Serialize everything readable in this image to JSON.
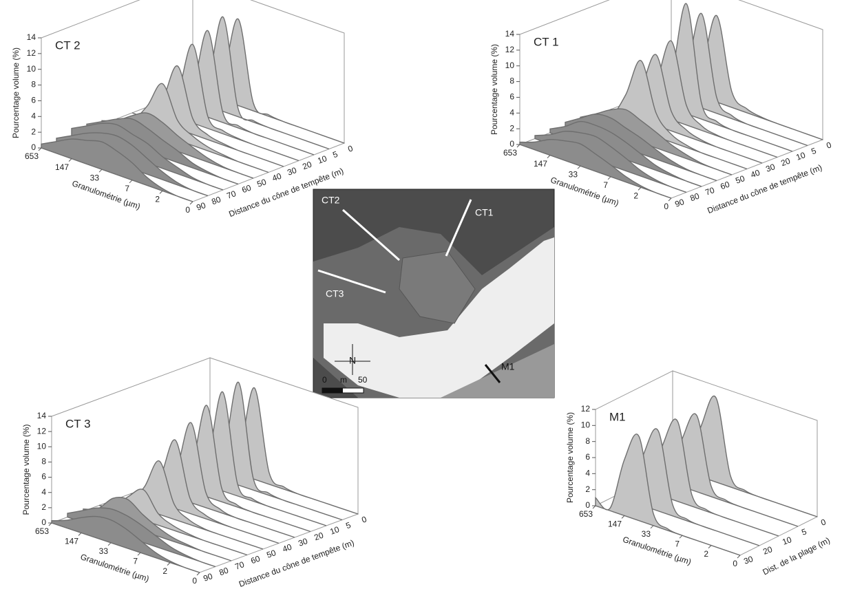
{
  "chart_data": [
    {
      "type": "waterfall",
      "title": "CT 2",
      "ylabel": "Pourcentage volume (%)",
      "xlabel": "Granulométrie (µm)",
      "zlabel": "Distance du cône de tempête (m)",
      "categories": [
        "653",
        null,
        "147",
        null,
        "33",
        null,
        "7",
        null,
        "2",
        null,
        "0"
      ],
      "zcategories": [
        90,
        80,
        70,
        60,
        50,
        40,
        30,
        20,
        10,
        5,
        0
      ],
      "ylim": [
        0,
        14
      ],
      "yticks": [
        0,
        2,
        4,
        6,
        8,
        10,
        12,
        14
      ],
      "series": [
        {
          "color": "#8c8c8c",
          "values": [
            0.5,
            1.5,
            2.5,
            3,
            3.5,
            3,
            2.2,
            1,
            0.3,
            0,
            0
          ]
        },
        {
          "color": "#8c8c8c",
          "values": [
            0.5,
            1.5,
            2.5,
            3.2,
            3.5,
            3,
            2,
            1,
            0.3,
            0,
            0
          ]
        },
        {
          "color": "#8c8c8c",
          "values": [
            1,
            2,
            3,
            3.5,
            3,
            2.5,
            1.5,
            0.8,
            0.2,
            0,
            0
          ]
        },
        {
          "color": "#8c8c8c",
          "values": [
            0.8,
            1.8,
            2.8,
            3.5,
            3,
            2.2,
            1.5,
            0.6,
            0.2,
            0,
            0
          ]
        },
        {
          "color": "#9a9a9a",
          "values": [
            0.5,
            1.2,
            2.5,
            3.5,
            3,
            2,
            1.2,
            0.5,
            0.1,
            0,
            0
          ]
        },
        {
          "color": "#c4c4c4",
          "values": [
            0,
            0.5,
            3,
            6.5,
            2.5,
            1.2,
            0.5,
            0.2,
            0,
            0,
            0
          ]
        },
        {
          "color": "#c4c4c4",
          "values": [
            0,
            0.3,
            3,
            8,
            2,
            0.6,
            0.2,
            0,
            0,
            0,
            0
          ]
        },
        {
          "color": "#c4c4c4",
          "values": [
            0,
            0.2,
            3,
            10,
            1.5,
            0.4,
            0.1,
            0,
            0,
            0,
            0
          ]
        },
        {
          "color": "#c4c4c4",
          "values": [
            0,
            0.2,
            3,
            11,
            1.2,
            0.3,
            0,
            0,
            0,
            0,
            0
          ]
        },
        {
          "color": "#c4c4c4",
          "values": [
            0,
            0.2,
            3,
            12,
            1,
            0.2,
            0,
            0,
            0,
            0,
            0
          ]
        },
        {
          "color": "#c4c4c4",
          "values": [
            0,
            0.2,
            3,
            11,
            1,
            0.2,
            0,
            0,
            0,
            0,
            0
          ]
        }
      ]
    },
    {
      "type": "waterfall",
      "title": "CT 1",
      "ylabel": "Pourcentage volume (%)",
      "xlabel": "Granulométrie (µm)",
      "zlabel": "Distance du cône de tempête (m)",
      "categories": [
        "653",
        null,
        "147",
        null,
        "33",
        null,
        "7",
        null,
        "2",
        null,
        "0"
      ],
      "zcategories": [
        90,
        80,
        70,
        60,
        50,
        40,
        30,
        20,
        10,
        5,
        0
      ],
      "ylim": [
        0,
        14
      ],
      "yticks": [
        0,
        2,
        4,
        6,
        8,
        10,
        12,
        14
      ],
      "series": [
        {
          "color": "#8c8c8c",
          "values": [
            0.3,
            1,
            2,
            2.5,
            2.8,
            2.2,
            1.5,
            0.7,
            0.2,
            0,
            0
          ]
        },
        {
          "color": "#8c8c8c",
          "values": [
            0.4,
            1.2,
            2.3,
            2.8,
            3,
            2.4,
            1.6,
            0.7,
            0.2,
            0,
            0
          ]
        },
        {
          "color": "#8c8c8c",
          "values": [
            0.5,
            1.5,
            2.8,
            3,
            2.8,
            2.2,
            1.4,
            0.6,
            0.2,
            0,
            0
          ]
        },
        {
          "color": "#8c8c8c",
          "values": [
            0.6,
            1.8,
            3,
            3.2,
            2.6,
            2,
            1.2,
            0.5,
            0.1,
            0,
            0
          ]
        },
        {
          "color": "#9a9a9a",
          "values": [
            0.5,
            1.6,
            2.8,
            3.5,
            2.8,
            2,
            1.1,
            0.5,
            0.1,
            0,
            0
          ]
        },
        {
          "color": "#c4c4c4",
          "values": [
            0,
            0.5,
            4,
            9,
            3,
            1,
            0.3,
            0,
            0,
            0,
            0
          ]
        },
        {
          "color": "#c4c4c4",
          "values": [
            0,
            0.4,
            4,
            9,
            2.5,
            0.8,
            0.2,
            0,
            0,
            0,
            0
          ]
        },
        {
          "color": "#c4c4c4",
          "values": [
            0,
            0.3,
            4,
            10,
            2.5,
            0.6,
            0.1,
            0,
            0,
            0,
            0
          ]
        },
        {
          "color": "#c4c4c4",
          "values": [
            0,
            0.2,
            4,
            14,
            2,
            0.4,
            0,
            0,
            0,
            0,
            0
          ]
        },
        {
          "color": "#c4c4c4",
          "values": [
            0,
            0.2,
            4,
            12,
            2,
            0.4,
            0,
            0,
            0,
            0,
            0
          ]
        },
        {
          "color": "#c4c4c4",
          "values": [
            0,
            0.2,
            3.5,
            11,
            2,
            0.5,
            0.1,
            0,
            0,
            0,
            0
          ]
        }
      ]
    },
    {
      "type": "waterfall",
      "title": "CT 3",
      "ylabel": "Pourcentage volume (%)",
      "xlabel": "Granulométrie (µm)",
      "zlabel": "Distance du cône de tempête (m)",
      "categories": [
        "653",
        null,
        "147",
        null,
        "33",
        null,
        "7",
        null,
        "2",
        null,
        "0"
      ],
      "zcategories": [
        90,
        80,
        70,
        60,
        50,
        40,
        30,
        20,
        10,
        5,
        0
      ],
      "ylim": [
        0,
        14
      ],
      "yticks": [
        0,
        2,
        4,
        6,
        8,
        10,
        12,
        14
      ],
      "series": [
        {
          "color": "#8c8c8c",
          "values": [
            0.3,
            1,
            2,
            2.8,
            3,
            2.5,
            1.6,
            0.7,
            0.2,
            0,
            0
          ]
        },
        {
          "color": "#8c8c8c",
          "values": [
            0.5,
            1.5,
            2.5,
            3,
            2.8,
            2.2,
            1.4,
            0.6,
            0.2,
            0,
            0
          ]
        },
        {
          "color": "#9a9a9a",
          "values": [
            0.3,
            1,
            3,
            3.5,
            2.2,
            1.2,
            0.5,
            0.2,
            0,
            0,
            0
          ]
        },
        {
          "color": "#c4c4c4",
          "values": [
            0,
            0.5,
            2.5,
            4,
            1.5,
            0.6,
            0.2,
            0,
            0,
            0,
            0
          ]
        },
        {
          "color": "#c4c4c4",
          "values": [
            0,
            0.3,
            3,
            7,
            2,
            0.6,
            0.1,
            0,
            0,
            0,
            0
          ]
        },
        {
          "color": "#c4c4c4",
          "values": [
            0,
            0.3,
            3.5,
            9,
            2,
            0.5,
            0.1,
            0,
            0,
            0,
            0
          ]
        },
        {
          "color": "#c4c4c4",
          "values": [
            0,
            0.2,
            3.5,
            10.5,
            2,
            0.4,
            0,
            0,
            0,
            0,
            0
          ]
        },
        {
          "color": "#c4c4c4",
          "values": [
            0,
            0.2,
            3.5,
            12,
            1.8,
            0.3,
            0,
            0,
            0,
            0,
            0
          ]
        },
        {
          "color": "#c4c4c4",
          "values": [
            0,
            0.2,
            3.5,
            13,
            1.6,
            0.3,
            0,
            0,
            0,
            0,
            0
          ]
        },
        {
          "color": "#c4c4c4",
          "values": [
            0,
            0.2,
            3.5,
            13.5,
            1.5,
            0.3,
            0,
            0,
            0,
            0,
            0
          ]
        },
        {
          "color": "#c4c4c4",
          "values": [
            0,
            0.2,
            3,
            12,
            1.5,
            0.3,
            0,
            0,
            0,
            0,
            0
          ]
        }
      ]
    },
    {
      "type": "waterfall",
      "title": "M1",
      "ylabel": "Pourcentage volume (%)",
      "xlabel": "Granulométrie (µm)",
      "zlabel": "Dist. de la plage (m)",
      "categories": [
        "653",
        null,
        "147",
        null,
        "33",
        null,
        "7",
        null,
        "2",
        null,
        "0"
      ],
      "zcategories": [
        30,
        20,
        10,
        5,
        0
      ],
      "ylim": [
        0,
        12
      ],
      "yticks": [
        0,
        2,
        4,
        6,
        8,
        10,
        12
      ],
      "series": [
        {
          "color": "#c4c4c4",
          "values": [
            1,
            0.3,
            7,
            10.5,
            1.5,
            0.2,
            0,
            0,
            0,
            0,
            0
          ]
        },
        {
          "color": "#c4c4c4",
          "values": [
            0,
            0.2,
            6.5,
            10,
            1.4,
            0.2,
            0,
            0,
            0,
            0,
            0
          ]
        },
        {
          "color": "#c4c4c4",
          "values": [
            0,
            0.2,
            6.5,
            10,
            1.4,
            0.2,
            0,
            0,
            0,
            0,
            0
          ]
        },
        {
          "color": "#c4c4c4",
          "values": [
            0,
            0.2,
            6,
            9.5,
            1.3,
            0.2,
            0,
            0,
            0,
            0,
            0
          ]
        },
        {
          "color": "#c4c4c4",
          "values": [
            0,
            0.2,
            6.5,
            10.5,
            1.4,
            0.2,
            0,
            0,
            0,
            0,
            0
          ]
        }
      ]
    }
  ],
  "map": {
    "transects": [
      "CT2",
      "CT1",
      "CT3",
      "M1"
    ],
    "north": "N",
    "scale_start": 0,
    "scale_unit": "m",
    "scale_end": 50
  }
}
